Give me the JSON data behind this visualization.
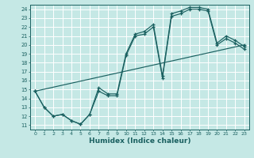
{
  "xlabel": "Humidex (Indice chaleur)",
  "bg_color": "#c5e8e5",
  "grid_color": "#e8e8e8",
  "line_color": "#1a6060",
  "xlim": [
    -0.5,
    23.5
  ],
  "ylim": [
    10.5,
    24.5
  ],
  "xticks": [
    0,
    1,
    2,
    3,
    4,
    5,
    6,
    7,
    8,
    9,
    10,
    11,
    12,
    13,
    14,
    15,
    16,
    17,
    18,
    19,
    20,
    21,
    22,
    23
  ],
  "yticks": [
    11,
    12,
    13,
    14,
    15,
    16,
    17,
    18,
    19,
    20,
    21,
    22,
    23,
    24
  ],
  "line1_x": [
    0,
    1,
    2,
    3,
    4,
    5,
    6,
    7,
    8,
    9,
    10,
    11,
    12,
    13,
    14,
    15,
    16,
    17,
    18,
    19,
    20,
    21,
    22,
    23
  ],
  "line1_y": [
    14.8,
    13.0,
    12.0,
    12.2,
    11.5,
    11.1,
    12.2,
    15.2,
    14.5,
    14.5,
    19.0,
    21.2,
    21.5,
    22.3,
    16.5,
    23.5,
    23.8,
    24.2,
    24.2,
    24.0,
    20.2,
    21.0,
    20.5,
    19.8
  ],
  "line2_x": [
    0,
    1,
    2,
    3,
    4,
    5,
    6,
    7,
    8,
    9,
    10,
    11,
    12,
    13,
    14,
    15,
    16,
    17,
    18,
    19,
    20,
    21,
    22,
    23
  ],
  "line2_y": [
    14.8,
    13.0,
    12.0,
    12.2,
    11.5,
    11.1,
    12.2,
    14.8,
    14.3,
    14.3,
    18.8,
    21.0,
    21.2,
    22.0,
    16.3,
    23.2,
    23.5,
    24.0,
    24.0,
    23.8,
    20.0,
    20.7,
    20.2,
    19.5
  ],
  "line3_x": [
    0,
    23
  ],
  "line3_y": [
    14.8,
    20.0
  ]
}
